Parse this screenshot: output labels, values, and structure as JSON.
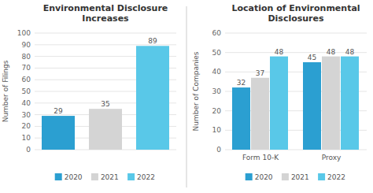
{
  "chart_data": [
    {
      "type": "bar",
      "title": "Environmental Disclosure\nIncreases",
      "y_label": "Number of Filings",
      "categories": [
        "2020",
        "2021",
        "2022"
      ],
      "values": [
        29,
        35,
        89
      ],
      "colors": [
        "#2B9FD1",
        "#D4D4D4",
        "#59C8E8"
      ],
      "ylim": [
        0,
        100
      ],
      "yticks": [
        0,
        10,
        20,
        30,
        40,
        50,
        60,
        70,
        80,
        90,
        100
      ],
      "grid": true,
      "data_labels": true,
      "tick_labels": "y",
      "legend": "bottom"
    },
    {
      "type": "bar",
      "title": "Location of Environmental\nDisclosures",
      "y_label": "Number of Companies",
      "categories": [
        "Form 10-K",
        "Proxy"
      ],
      "series": [
        {
          "name": "2020",
          "color": "#2B9FD1",
          "values": [
            32,
            45
          ]
        },
        {
          "name": "2021",
          "color": "#D4D4D4",
          "values": [
            37,
            48
          ]
        },
        {
          "name": "2022",
          "color": "#59C8E8",
          "values": [
            48,
            48
          ]
        }
      ],
      "ylim": [
        0,
        60
      ],
      "yticks": [
        0,
        10,
        20,
        30,
        40,
        50,
        60
      ],
      "grid": true,
      "data_labels": true,
      "legend": "bottom"
    }
  ]
}
